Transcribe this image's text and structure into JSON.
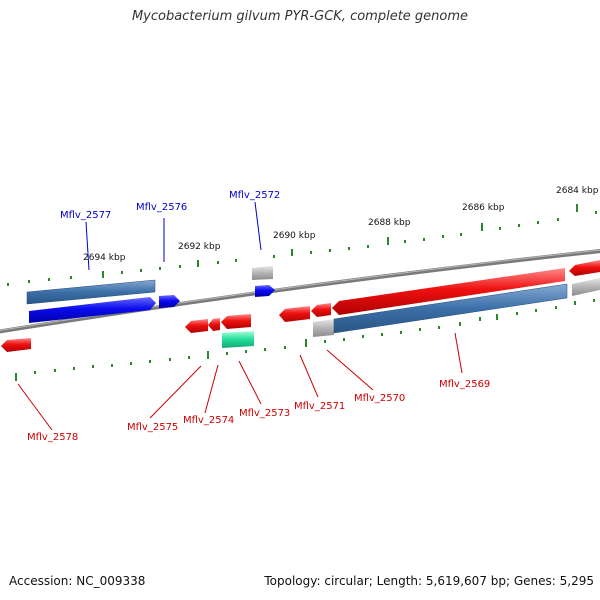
{
  "title": "Mycobacterium gilvum PYR-GCK, complete genome",
  "accession": "Accession: NC_009338",
  "stats": "Topology: circular; Length: 5,619,607 bp; Genes: 5,295",
  "colors": {
    "backbone": "#808080",
    "gene_red": "#ee1111",
    "gene_blue": "#0b0bee",
    "gene_steel": "#3c6fa8",
    "gene_grey": "#b4b4b4",
    "gene_teal": "#22dd99",
    "tick": "#2a8a2a",
    "label_blue": "#0000cc",
    "label_red": "#cc0000"
  },
  "kbp_ticks": [
    "2694 kbp",
    "2692 kbp",
    "2690 kbp",
    "2688 kbp",
    "2686 kbp",
    "2684 kbp"
  ],
  "genes_top": [
    "Mflv_2577",
    "Mflv_2576",
    "Mflv_2572"
  ],
  "genes_bottom": [
    "Mflv_2578",
    "Mflv_2575",
    "Mflv_2574",
    "Mflv_2573",
    "Mflv_2571",
    "Mflv_2570",
    "Mflv_2569"
  ]
}
